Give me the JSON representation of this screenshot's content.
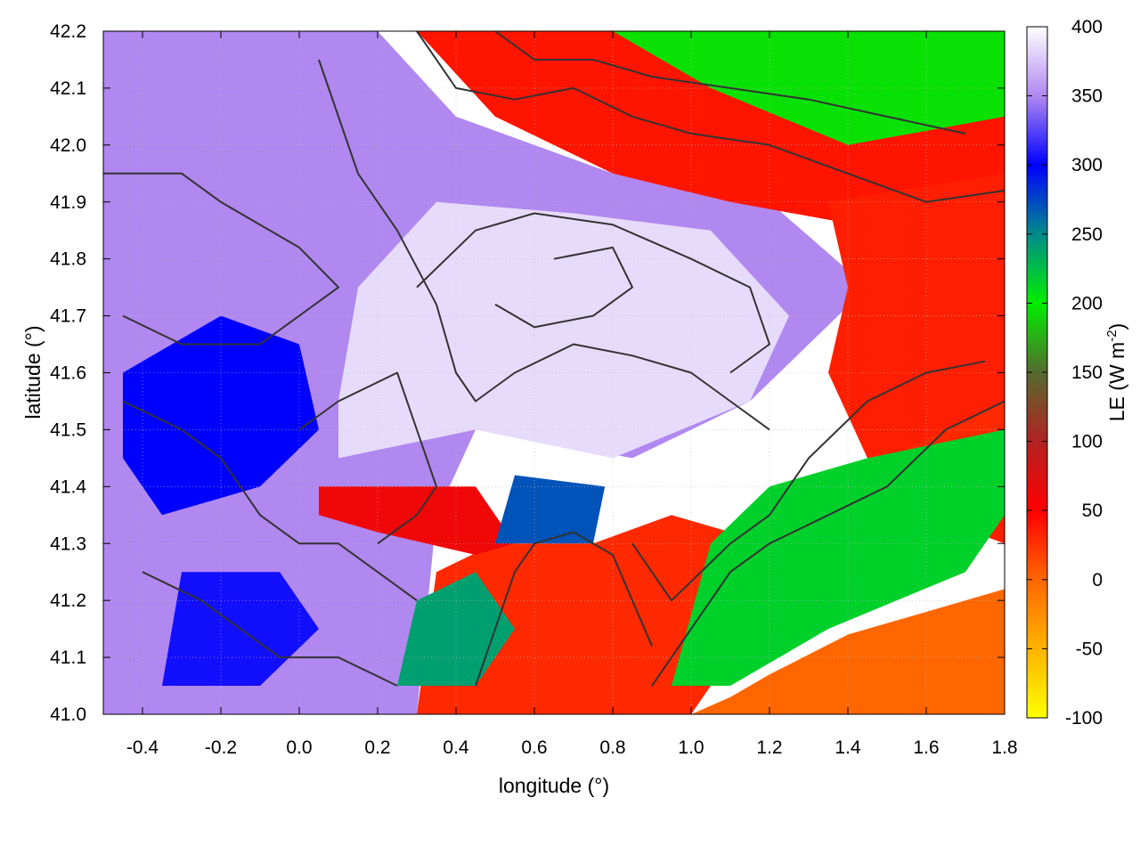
{
  "chart_data": {
    "type": "heatmap",
    "title": "",
    "xlabel": "longitude (°)",
    "ylabel": "latitude (°)",
    "xlim": [
      -0.5,
      1.8
    ],
    "ylim": [
      41.0,
      42.2
    ],
    "xticks": [
      -0.4,
      -0.2,
      0.0,
      0.2,
      0.4,
      0.6,
      0.8,
      1.0,
      1.2,
      1.4,
      1.6,
      1.8
    ],
    "xtick_labels": [
      "-0.4",
      "-0.2",
      "0.0",
      "0.2",
      "0.4",
      "0.6",
      "0.8",
      "1.0",
      "1.2",
      "1.4",
      "1.6",
      "1.8"
    ],
    "yticks": [
      41.0,
      41.1,
      41.2,
      41.3,
      41.4,
      41.5,
      41.6,
      41.7,
      41.8,
      41.9,
      42.0,
      42.1,
      42.2
    ],
    "ytick_labels": [
      "41.0",
      "41.1",
      "41.2",
      "41.3",
      "41.4",
      "41.5",
      "41.6",
      "41.7",
      "41.8",
      "41.9",
      "42.0",
      "42.1",
      "42.2"
    ],
    "grid": true,
    "colorbar": {
      "label": "LE (W m",
      "label_superscript": "-2",
      "label_close": ")",
      "range": [
        -100,
        400
      ],
      "ticks": [
        -100,
        -50,
        0,
        50,
        100,
        150,
        200,
        250,
        300,
        350,
        400
      ],
      "tick_labels": [
        "-100",
        "-50",
        "0",
        "50",
        "100",
        "150",
        "200",
        "250",
        "300",
        "350",
        "400"
      ],
      "stops": [
        {
          "value": -100,
          "color": "#ffff00"
        },
        {
          "value": 0,
          "color": "#ff6600"
        },
        {
          "value": 50,
          "color": "#ff0000"
        },
        {
          "value": 100,
          "color": "#b22222"
        },
        {
          "value": 150,
          "color": "#556b2f"
        },
        {
          "value": 200,
          "color": "#00ee00"
        },
        {
          "value": 250,
          "color": "#008b8b"
        },
        {
          "value": 300,
          "color": "#0000ff"
        },
        {
          "value": 350,
          "color": "#b088f0"
        },
        {
          "value": 400,
          "color": "#ffffff"
        }
      ]
    },
    "regions": [
      {
        "name": "interior-plateau",
        "le": 350,
        "points": [
          [
            -0.5,
            41.0
          ],
          [
            0.3,
            41.0
          ],
          [
            0.35,
            41.35
          ],
          [
            0.45,
            41.5
          ],
          [
            0.85,
            41.45
          ],
          [
            1.15,
            41.55
          ],
          [
            1.45,
            41.75
          ],
          [
            1.2,
            41.9
          ],
          [
            0.8,
            41.95
          ],
          [
            0.4,
            42.05
          ],
          [
            0.2,
            42.2
          ],
          [
            -0.5,
            42.2
          ]
        ]
      },
      {
        "name": "central-plain",
        "le": 385,
        "points": [
          [
            0.1,
            41.45
          ],
          [
            0.45,
            41.5
          ],
          [
            0.8,
            41.45
          ],
          [
            1.15,
            41.55
          ],
          [
            1.25,
            41.7
          ],
          [
            1.05,
            41.85
          ],
          [
            0.7,
            41.88
          ],
          [
            0.35,
            41.9
          ],
          [
            0.15,
            41.75
          ],
          [
            0.1,
            41.55
          ]
        ]
      },
      {
        "name": "western-band",
        "le": 300,
        "points": [
          [
            -0.45,
            41.6
          ],
          [
            -0.2,
            41.7
          ],
          [
            0.0,
            41.65
          ],
          [
            0.05,
            41.5
          ],
          [
            -0.1,
            41.4
          ],
          [
            -0.35,
            41.35
          ],
          [
            -0.45,
            41.45
          ]
        ]
      },
      {
        "name": "southwest-band",
        "le": 305,
        "points": [
          [
            -0.35,
            41.05
          ],
          [
            -0.1,
            41.05
          ],
          [
            0.05,
            41.15
          ],
          [
            -0.05,
            41.25
          ],
          [
            -0.3,
            41.25
          ]
        ]
      },
      {
        "name": "north-mountains",
        "le": 40,
        "points": [
          [
            0.3,
            42.2
          ],
          [
            1.8,
            42.2
          ],
          [
            1.8,
            41.95
          ],
          [
            1.5,
            41.85
          ],
          [
            1.1,
            41.9
          ],
          [
            0.8,
            41.95
          ],
          [
            0.5,
            42.05
          ]
        ]
      },
      {
        "name": "north-forest",
        "le": 195,
        "points": [
          [
            0.8,
            42.2
          ],
          [
            1.8,
            42.2
          ],
          [
            1.8,
            42.05
          ],
          [
            1.4,
            42.0
          ],
          [
            1.05,
            42.1
          ]
        ]
      },
      {
        "name": "east-hills",
        "le": 35,
        "points": [
          [
            1.35,
            41.9
          ],
          [
            1.8,
            41.95
          ],
          [
            1.8,
            41.3
          ],
          [
            1.6,
            41.35
          ],
          [
            1.45,
            41.45
          ],
          [
            1.35,
            41.6
          ],
          [
            1.4,
            41.75
          ]
        ]
      },
      {
        "name": "coastal-range",
        "le": 30,
        "points": [
          [
            0.3,
            41.0
          ],
          [
            1.0,
            41.0
          ],
          [
            1.2,
            41.2
          ],
          [
            1.5,
            41.45
          ],
          [
            1.8,
            41.55
          ],
          [
            1.8,
            41.35
          ],
          [
            1.45,
            41.25
          ],
          [
            1.2,
            41.3
          ],
          [
            0.95,
            41.35
          ],
          [
            0.75,
            41.3
          ],
          [
            0.5,
            41.3
          ],
          [
            0.35,
            41.25
          ]
        ]
      },
      {
        "name": "coastal-vegetation",
        "le": 215,
        "points": [
          [
            0.95,
            41.05
          ],
          [
            1.1,
            41.05
          ],
          [
            1.35,
            41.15
          ],
          [
            1.7,
            41.25
          ],
          [
            1.8,
            41.35
          ],
          [
            1.8,
            41.5
          ],
          [
            1.45,
            41.45
          ],
          [
            1.2,
            41.4
          ],
          [
            1.05,
            41.3
          ]
        ]
      },
      {
        "name": "delta-wetlands",
        "le": 240,
        "points": [
          [
            0.25,
            41.05
          ],
          [
            0.45,
            41.05
          ],
          [
            0.55,
            41.15
          ],
          [
            0.45,
            41.25
          ],
          [
            0.3,
            41.2
          ]
        ]
      },
      {
        "name": "river-corridor",
        "le": 60,
        "points": [
          [
            0.05,
            41.4
          ],
          [
            0.45,
            41.4
          ],
          [
            0.55,
            41.3
          ],
          [
            0.45,
            41.28
          ],
          [
            0.2,
            41.32
          ],
          [
            0.05,
            41.35
          ]
        ]
      },
      {
        "name": "mid-blue-patch",
        "le": 270,
        "points": [
          [
            0.5,
            41.3
          ],
          [
            0.75,
            41.3
          ],
          [
            0.78,
            41.4
          ],
          [
            0.55,
            41.42
          ]
        ]
      },
      {
        "name": "sea",
        "le": 0,
        "points": [
          [
            1.0,
            41.0
          ],
          [
            1.8,
            41.0
          ],
          [
            1.8,
            41.22
          ],
          [
            1.6,
            41.18
          ],
          [
            1.4,
            41.14
          ],
          [
            1.2,
            41.07
          ],
          [
            1.1,
            41.03
          ]
        ]
      }
    ],
    "contours": [
      [
        [
          -0.5,
          41.95
        ],
        [
          -0.3,
          41.95
        ],
        [
          -0.2,
          41.9
        ],
        [
          0.0,
          41.82
        ],
        [
          0.1,
          41.75
        ],
        [
          0.0,
          41.7
        ],
        [
          -0.1,
          41.65
        ],
        [
          -0.3,
          41.65
        ],
        [
          -0.45,
          41.7
        ]
      ],
      [
        [
          -0.45,
          41.55
        ],
        [
          -0.3,
          41.5
        ],
        [
          -0.2,
          41.45
        ],
        [
          -0.1,
          41.35
        ],
        [
          0.0,
          41.3
        ],
        [
          0.1,
          41.3
        ],
        [
          0.2,
          41.25
        ],
        [
          0.3,
          41.2
        ]
      ],
      [
        [
          0.05,
          42.15
        ],
        [
          0.1,
          42.05
        ],
        [
          0.15,
          41.95
        ],
        [
          0.25,
          41.85
        ],
        [
          0.35,
          41.72
        ],
        [
          0.4,
          41.6
        ],
        [
          0.45,
          41.55
        ],
        [
          0.55,
          41.6
        ],
        [
          0.7,
          41.65
        ],
        [
          0.85,
          41.63
        ],
        [
          1.0,
          41.6
        ],
        [
          1.1,
          41.55
        ],
        [
          1.2,
          41.5
        ]
      ],
      [
        [
          0.3,
          41.75
        ],
        [
          0.45,
          41.85
        ],
        [
          0.6,
          41.88
        ],
        [
          0.8,
          41.86
        ],
        [
          1.0,
          41.8
        ],
        [
          1.15,
          41.75
        ],
        [
          1.2,
          41.65
        ],
        [
          1.1,
          41.6
        ]
      ],
      [
        [
          0.5,
          41.72
        ],
        [
          0.6,
          41.68
        ],
        [
          0.75,
          41.7
        ],
        [
          0.85,
          41.75
        ],
        [
          0.8,
          41.82
        ],
        [
          0.65,
          41.8
        ]
      ],
      [
        [
          0.0,
          41.5
        ],
        [
          0.1,
          41.55
        ],
        [
          0.25,
          41.6
        ],
        [
          0.3,
          41.5
        ],
        [
          0.35,
          41.4
        ],
        [
          0.3,
          41.35
        ],
        [
          0.2,
          41.3
        ]
      ],
      [
        [
          0.85,
          41.3
        ],
        [
          0.95,
          41.2
        ],
        [
          1.1,
          41.3
        ],
        [
          1.2,
          41.35
        ],
        [
          1.3,
          41.45
        ],
        [
          1.45,
          41.55
        ],
        [
          1.6,
          41.6
        ],
        [
          1.75,
          41.62
        ]
      ],
      [
        [
          0.9,
          41.05
        ],
        [
          1.0,
          41.15
        ],
        [
          1.1,
          41.25
        ],
        [
          1.2,
          41.3
        ],
        [
          1.35,
          41.35
        ],
        [
          1.5,
          41.4
        ],
        [
          1.65,
          41.5
        ],
        [
          1.8,
          41.55
        ]
      ],
      [
        [
          0.3,
          42.2
        ],
        [
          0.4,
          42.1
        ],
        [
          0.55,
          42.08
        ],
        [
          0.7,
          42.1
        ],
        [
          0.85,
          42.05
        ],
        [
          1.0,
          42.02
        ],
        [
          1.2,
          42.0
        ],
        [
          1.4,
          41.95
        ],
        [
          1.6,
          41.9
        ],
        [
          1.8,
          41.92
        ]
      ],
      [
        [
          0.5,
          42.2
        ],
        [
          0.6,
          42.15
        ],
        [
          0.75,
          42.15
        ],
        [
          0.9,
          42.12
        ],
        [
          1.1,
          42.1
        ],
        [
          1.3,
          42.08
        ],
        [
          1.5,
          42.05
        ],
        [
          1.7,
          42.02
        ]
      ],
      [
        [
          0.45,
          41.05
        ],
        [
          0.5,
          41.15
        ],
        [
          0.55,
          41.25
        ],
        [
          0.6,
          41.3
        ],
        [
          0.7,
          41.32
        ],
        [
          0.8,
          41.28
        ],
        [
          0.85,
          41.2
        ],
        [
          0.9,
          41.12
        ]
      ],
      [
        [
          -0.4,
          41.25
        ],
        [
          -0.25,
          41.2
        ],
        [
          -0.15,
          41.15
        ],
        [
          -0.05,
          41.1
        ],
        [
          0.1,
          41.1
        ],
        [
          0.25,
          41.05
        ]
      ]
    ]
  }
}
